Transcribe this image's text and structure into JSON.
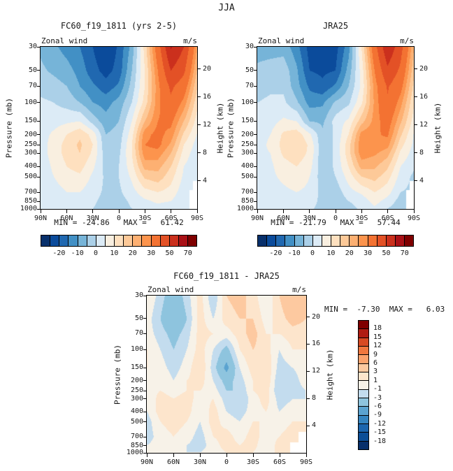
{
  "figure_title": "JJA",
  "chart_data": [
    {
      "id": "model",
      "type": "heatmap",
      "title": "FC60_f19_1811 (yrs 2-5)",
      "field_label": "Zonal wind",
      "units": "m/s",
      "stats": "MIN = -24.86   MAX =   61.42",
      "xlabel_ticks": [
        "90N",
        "60N",
        "30N",
        "0",
        "30S",
        "60S",
        "90S"
      ],
      "y_left_title": "Pressure (mb)",
      "pressure_ticks": [
        30,
        50,
        70,
        100,
        150,
        200,
        250,
        300,
        400,
        500,
        700,
        850,
        1000
      ],
      "y_right_title": "Height (km)",
      "height_ticks": [
        20,
        16,
        12,
        8,
        4
      ],
      "levels": [
        -25,
        -20,
        -15,
        -10,
        -5,
        0,
        5,
        10,
        15,
        20,
        25,
        30,
        40,
        50,
        60,
        70
      ],
      "palette": [
        "#08306b",
        "#0b4b9b",
        "#2068b0",
        "#4290c5",
        "#76b4d8",
        "#abd0e8",
        "#dcebf6",
        "#f9efe0",
        "#fee0bf",
        "#fdc998",
        "#fdb072",
        "#fc944d",
        "#f37232",
        "#e35126",
        "#cb301d",
        "#a91016",
        "#7f0000"
      ],
      "colorbar_labels": [
        -20,
        -10,
        0,
        10,
        20,
        30,
        50,
        70
      ],
      "lats_deg": [
        90,
        75,
        60,
        45,
        30,
        15,
        0,
        -15,
        -30,
        -45,
        -60,
        -75,
        -90
      ],
      "values": [
        [
          -6,
          -9,
          -12,
          -15,
          -20,
          -25,
          -19,
          -8,
          12,
          35,
          61,
          50,
          25
        ],
        [
          -4,
          -6,
          -8,
          -12,
          -18,
          -22,
          -18,
          -5,
          10,
          30,
          50,
          42,
          20
        ],
        [
          -2,
          -3,
          -5,
          -10,
          -14,
          -18,
          -14,
          -3,
          10,
          28,
          42,
          35,
          16
        ],
        [
          1,
          0,
          -2,
          -5,
          -10,
          -12,
          -8,
          0,
          12,
          28,
          38,
          28,
          12
        ],
        [
          2,
          3,
          4,
          5,
          -2,
          -8,
          -5,
          5,
          20,
          30,
          32,
          20,
          8
        ],
        [
          3,
          6,
          10,
          14,
          8,
          -5,
          -3,
          8,
          28,
          32,
          28,
          14,
          5
        ],
        [
          3,
          7,
          12,
          16,
          10,
          -4,
          -2,
          10,
          30,
          32,
          24,
          10,
          3
        ],
        [
          3,
          7,
          12,
          15,
          9,
          -3,
          -1,
          10,
          28,
          28,
          20,
          8,
          2
        ],
        [
          2,
          6,
          10,
          12,
          6,
          -2,
          0,
          8,
          22,
          22,
          15,
          5,
          1
        ],
        [
          2,
          5,
          8,
          9,
          4,
          -1,
          0,
          6,
          16,
          18,
          12,
          4,
          0
        ],
        [
          1,
          3,
          5,
          5,
          2,
          -1,
          -1,
          3,
          8,
          10,
          8,
          2,
          0
        ],
        [
          0,
          2,
          3,
          3,
          1,
          -2,
          -2,
          1,
          4,
          6,
          5,
          1,
          0
        ],
        [
          0,
          1,
          2,
          1,
          0,
          -2,
          -2,
          0,
          2,
          3,
          2,
          0,
          0
        ]
      ]
    },
    {
      "id": "jra",
      "type": "heatmap",
      "title": "JRA25",
      "field_label": "Zonal wind",
      "units": "m/s",
      "stats": "MIN = -21.79   MAX =   57.44",
      "xlabel_ticks": [
        "90N",
        "60N",
        "30N",
        "0",
        "30S",
        "60S",
        "90S"
      ],
      "y_left_title": "Pressure (mb)",
      "pressure_ticks": [
        30,
        50,
        70,
        100,
        150,
        200,
        250,
        300,
        400,
        500,
        700,
        850,
        1000
      ],
      "y_right_title": "Height (km)",
      "height_ticks": [
        20,
        16,
        12,
        8,
        4
      ],
      "levels": [
        -25,
        -20,
        -15,
        -10,
        -5,
        0,
        5,
        10,
        15,
        20,
        25,
        30,
        40,
        50,
        60,
        70
      ],
      "palette": [
        "#08306b",
        "#0b4b9b",
        "#2068b0",
        "#4290c5",
        "#76b4d8",
        "#abd0e8",
        "#dcebf6",
        "#f9efe0",
        "#fee0bf",
        "#fdc998",
        "#fdb072",
        "#fc944d",
        "#f37232",
        "#e35126",
        "#cb301d",
        "#a91016",
        "#7f0000"
      ],
      "colorbar_labels": [
        -20,
        -10,
        0,
        10,
        20,
        30,
        50,
        70
      ],
      "lats_deg": [
        90,
        75,
        60,
        45,
        30,
        15,
        0,
        -15,
        -30,
        -45,
        -60,
        -75,
        -90
      ],
      "values": [
        [
          -7,
          -7,
          -7,
          -13,
          -22,
          -22,
          -22,
          -12,
          10,
          36,
          58,
          44,
          21
        ],
        [
          -4,
          -3,
          -2,
          -9,
          -20,
          -21,
          -20,
          -8,
          7,
          30,
          48,
          38,
          17
        ],
        [
          -2,
          -1,
          -1,
          -8,
          -16,
          -19,
          -14,
          -5,
          6,
          27,
          41,
          33,
          14
        ],
        [
          0,
          1,
          1,
          -4,
          -12,
          -11,
          -4,
          -1,
          9,
          26,
          39,
          27,
          11
        ],
        [
          1,
          3,
          6,
          5,
          -5,
          -6,
          2,
          6,
          18,
          27,
          34,
          21,
          8
        ],
        [
          3,
          5,
          11,
          13,
          6,
          -4,
          1,
          10,
          27,
          29,
          31,
          16,
          5
        ],
        [
          3,
          6,
          12,
          15,
          9,
          -4,
          1,
          13,
          29,
          30,
          27,
          12,
          4
        ],
        [
          4,
          5,
          11,
          13,
          9,
          -4,
          1,
          13,
          28,
          26,
          22,
          9,
          3
        ],
        [
          3,
          4,
          8,
          10,
          7,
          -4,
          1,
          10,
          22,
          21,
          16,
          5,
          1
        ],
        [
          4,
          4,
          6,
          8,
          5,
          -3,
          0,
          7,
          15,
          17,
          12,
          3,
          -1
        ],
        [
          3,
          3,
          4,
          5,
          4,
          -2,
          -3,
          3,
          6,
          10,
          7,
          0,
          -1
        ],
        [
          1,
          2,
          2,
          4,
          3,
          -2,
          -4,
          0,
          2,
          7,
          3,
          -2,
          -2
        ],
        [
          1,
          2,
          2,
          2,
          1,
          -2,
          -3,
          -2,
          1,
          4,
          0,
          -3,
          -2
        ]
      ]
    },
    {
      "id": "diff",
      "type": "heatmap",
      "title": "FC60_f19_1811 - JRA25",
      "field_label": "Zonal wind",
      "units": "m/s",
      "stats": "MIN =  -7.30  MAX =   6.03",
      "xlabel_ticks": [
        "90N",
        "60N",
        "30N",
        "0",
        "30S",
        "60S",
        "90S"
      ],
      "y_left_title": "Pressure (mb)",
      "pressure_ticks": [
        30,
        50,
        70,
        100,
        150,
        200,
        250,
        300,
        400,
        500,
        700,
        850,
        1000
      ],
      "y_right_title": "Height (km)",
      "height_ticks": [
        20,
        16,
        12,
        8,
        4
      ],
      "levels": [
        -18,
        -15,
        -12,
        -9,
        -6,
        -3,
        -1,
        1,
        3,
        6,
        9,
        12,
        15,
        18
      ],
      "palette": [
        "#08306b",
        "#0c4e96",
        "#1c66ae",
        "#3585c0",
        "#5ba3d0",
        "#8ec4de",
        "#c3dcee",
        "#f7f2e8",
        "#fde5cc",
        "#fdc9a0",
        "#fba26c",
        "#f0773e",
        "#d84a22",
        "#b01c12",
        "#7f0000"
      ],
      "colorbar_labels": [
        18,
        15,
        12,
        9,
        6,
        3,
        1,
        -1,
        -3,
        -6,
        -9,
        -12,
        -15,
        -18
      ],
      "lats_deg": [
        90,
        75,
        60,
        45,
        30,
        15,
        0,
        -15,
        -30,
        -45,
        -60,
        -75,
        -90
      ],
      "values": [
        [
          1,
          -2,
          -5,
          -2,
          2,
          -3,
          3,
          4,
          2,
          -1,
          3,
          6,
          4
        ],
        [
          0,
          -3,
          -6,
          -3,
          2,
          -1,
          2,
          3,
          3,
          0,
          2,
          4,
          3
        ],
        [
          0,
          -2,
          -4,
          -2,
          2,
          1,
          0,
          2,
          4,
          1,
          1,
          2,
          2
        ],
        [
          1,
          -1,
          -3,
          -1,
          2,
          -1,
          -4,
          1,
          3,
          2,
          -1,
          1,
          1
        ],
        [
          1,
          0,
          -2,
          0,
          3,
          -2,
          -7,
          -1,
          2,
          3,
          -2,
          -1,
          0
        ],
        [
          0,
          1,
          -1,
          1,
          2,
          -1,
          -4,
          -2,
          1,
          3,
          -3,
          -2,
          0
        ],
        [
          0,
          1,
          0,
          1,
          1,
          0,
          -3,
          -3,
          1,
          2,
          -3,
          -2,
          -1
        ],
        [
          -1,
          2,
          1,
          2,
          0,
          1,
          -2,
          -3,
          0,
          2,
          -2,
          -1,
          -1
        ],
        [
          -1,
          2,
          2,
          2,
          -1,
          2,
          -1,
          -2,
          0,
          1,
          -1,
          0,
          0
        ],
        [
          -2,
          1,
          2,
          1,
          -1,
          2,
          0,
          -1,
          1,
          1,
          0,
          1,
          1
        ],
        [
          -2,
          0,
          1,
          0,
          -2,
          1,
          2,
          0,
          2,
          0,
          1,
          2,
          1
        ],
        [
          -1,
          0,
          1,
          -1,
          -2,
          0,
          2,
          1,
          2,
          -1,
          2,
          3,
          2
        ],
        [
          -1,
          -1,
          0,
          -1,
          -1,
          0,
          1,
          2,
          1,
          -1,
          2,
          3,
          2
        ]
      ]
    }
  ]
}
